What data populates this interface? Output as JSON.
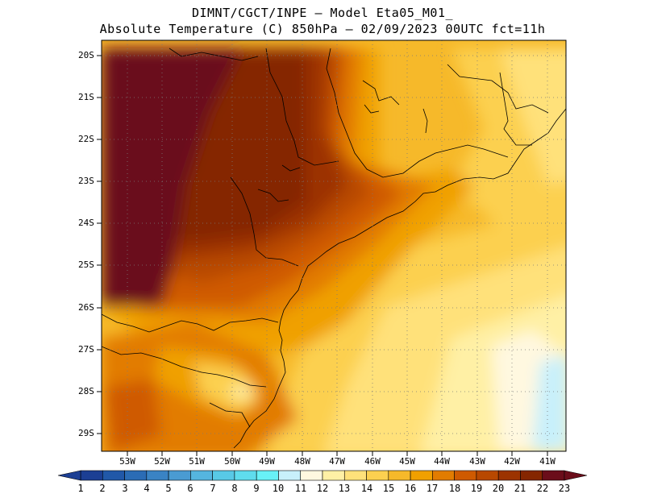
{
  "title_line1": "DIMNT/CGCT/INPE –  Model Eta05_M01_",
  "title_line2": "Absolute Temperature (C) 850hPa –  02/09/2023 00UTC fct=11h",
  "latitudes": [
    "20S",
    "21S",
    "22S",
    "23S",
    "24S",
    "25S",
    "26S",
    "27S",
    "28S",
    "29S"
  ],
  "longitudes": [
    "53W",
    "52W",
    "51W",
    "50W",
    "49W",
    "48W",
    "47W",
    "46W",
    "45W",
    "44W",
    "43W",
    "42W",
    "41W"
  ],
  "colorbar": {
    "labels": [
      "1",
      "2",
      "3",
      "4",
      "5",
      "6",
      "7",
      "8",
      "9",
      "10",
      "11",
      "12",
      "13",
      "14",
      "15",
      "16",
      "17",
      "18",
      "19",
      "20",
      "21",
      "22",
      "23"
    ],
    "colors": [
      "#1c3f94",
      "#2158a8",
      "#2b6cb5",
      "#3a83c4",
      "#4a9bd2",
      "#55b5df",
      "#58c9e6",
      "#5fdced",
      "#68f1f7",
      "#c8f0fb",
      "#fff8e0",
      "#fff0a5",
      "#ffe17a",
      "#fcd050",
      "#f6b92a",
      "#f0a000",
      "#e27c00",
      "#cf5a00",
      "#b84800",
      "#9c3300",
      "#852600",
      "#6b0d1a"
    ]
  },
  "theme": {
    "coast": "#000000",
    "grid": "#7a7a7a"
  }
}
